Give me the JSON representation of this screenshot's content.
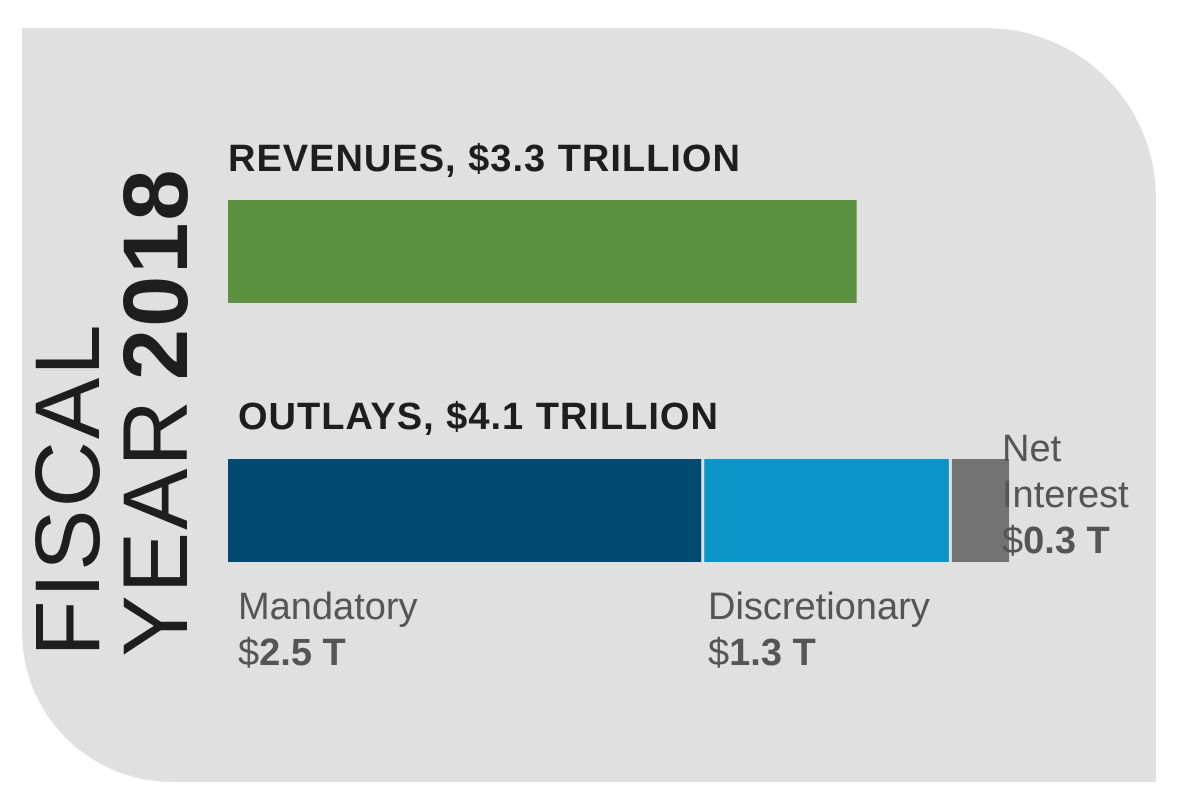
{
  "colors": {
    "panel": "#e0e0e0",
    "revenue": "#5b913f",
    "mandatory": "#024a72",
    "discretionary": "#0a96c8",
    "net_interest": "#737373",
    "text": "#1e1e1e",
    "label": "#555555"
  },
  "title": {
    "line1": "FISCAL",
    "line2_word": "YEAR",
    "line2_year": "2018"
  },
  "chart_data": {
    "type": "bar",
    "title": "FISCAL YEAR 2018",
    "unit": "trillion dollars",
    "series": [
      {
        "name": "Revenues",
        "heading": "REVENUES, $3.3 TRILLION",
        "total": 3.3,
        "segments": [
          {
            "name": "Revenues",
            "value": 3.3,
            "color_key": "revenue"
          }
        ]
      },
      {
        "name": "Outlays",
        "heading": "OUTLAYS, $4.1 TRILLION",
        "total": 4.1,
        "segments": [
          {
            "name": "Mandatory",
            "value": 2.5,
            "label_line1": "Mandatory",
            "dollar": "$",
            "amount": "2.5 T",
            "color_key": "mandatory"
          },
          {
            "name": "Discretionary",
            "value": 1.3,
            "label_line1": "Discretionary",
            "dollar": "$",
            "amount": "1.3 T",
            "color_key": "discretionary"
          },
          {
            "name": "Net Interest",
            "value": 0.3,
            "label_line1": "Net",
            "label_line2": "Interest",
            "dollar": "$",
            "amount": "0.3 T",
            "color_key": "net_interest"
          }
        ]
      }
    ]
  }
}
